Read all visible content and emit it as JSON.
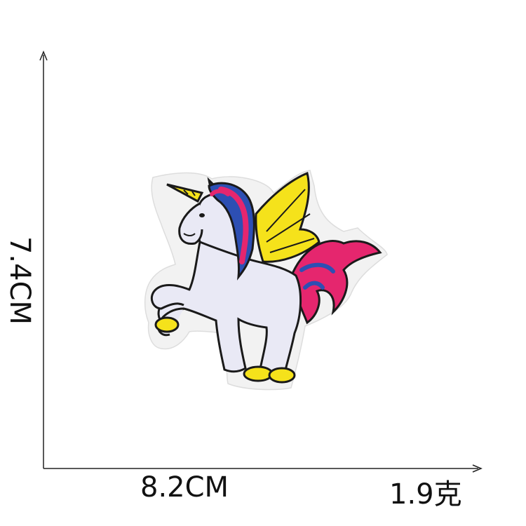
{
  "dimensions": {
    "width_label": "8.2CM",
    "height_label": "7.4CM",
    "weight_label": "1.9克"
  },
  "image": {
    "subject": "unicorn-patch",
    "colors": {
      "body": "#e9e9f5",
      "outline": "#1a1a1a",
      "pink": "#e5266e",
      "blue": "#2d4fb3",
      "yellow": "#f5e21b",
      "backing": "#f2f2f2"
    }
  }
}
